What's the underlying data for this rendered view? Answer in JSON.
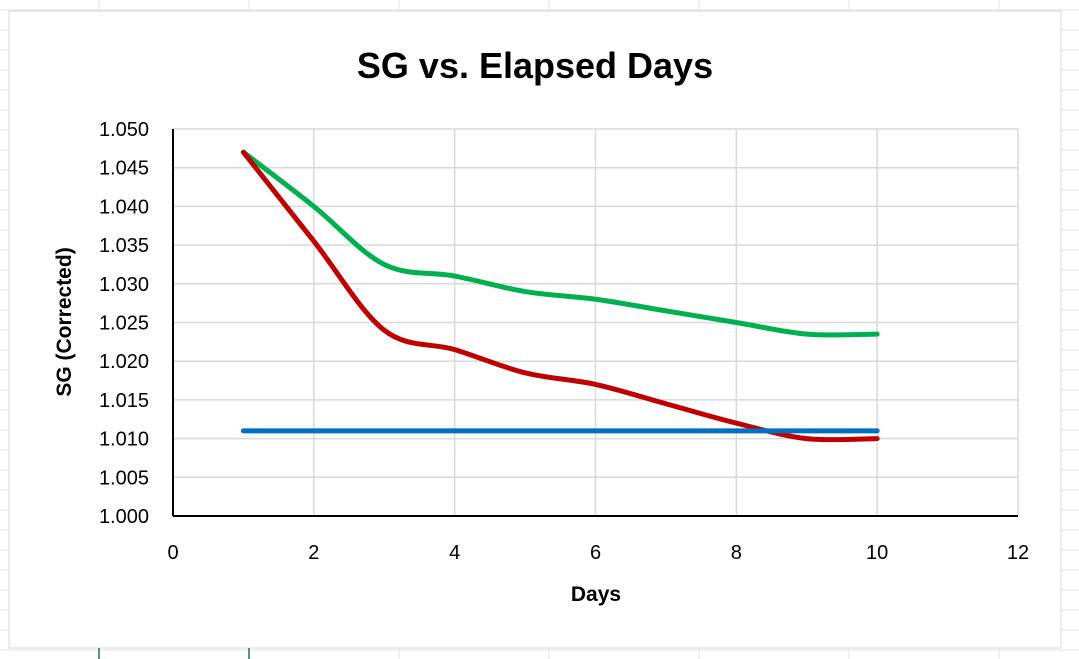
{
  "chart_data": {
    "type": "line",
    "title": "SG vs. Elapsed Days",
    "xlabel": "Days",
    "ylabel": "SG (Corrected)",
    "xlim": [
      0,
      12
    ],
    "ylim": [
      1.0,
      1.05
    ],
    "x_ticks": [
      0,
      2,
      4,
      6,
      8,
      10,
      12
    ],
    "y_ticks": [
      1.0,
      1.005,
      1.01,
      1.015,
      1.02,
      1.025,
      1.03,
      1.035,
      1.04,
      1.045,
      1.05
    ],
    "x_tick_labels": [
      "0",
      "2",
      "4",
      "6",
      "8",
      "10",
      "12"
    ],
    "y_tick_labels": [
      "1.000",
      "1.005",
      "1.010",
      "1.015",
      "1.020",
      "1.025",
      "1.030",
      "1.035",
      "1.040",
      "1.045",
      "1.050"
    ],
    "grid": true,
    "legend": "none",
    "smooth": true,
    "series": [
      {
        "color": "#00B050",
        "x": [
          1,
          2,
          3,
          4,
          5,
          6,
          7,
          8,
          9,
          10
        ],
        "values": [
          1.047,
          1.04,
          1.0325,
          1.031,
          1.029,
          1.028,
          1.0265,
          1.025,
          1.0235,
          1.0235
        ]
      },
      {
        "color": "#C00000",
        "x": [
          1,
          2,
          3,
          4,
          5,
          6,
          7,
          8,
          9,
          10
        ],
        "values": [
          1.047,
          1.0355,
          1.024,
          1.0215,
          1.0185,
          1.017,
          1.0145,
          1.012,
          1.01,
          1.01
        ]
      },
      {
        "color": "#0070C0",
        "x": [
          1,
          10
        ],
        "values": [
          1.011,
          1.011
        ]
      }
    ]
  }
}
